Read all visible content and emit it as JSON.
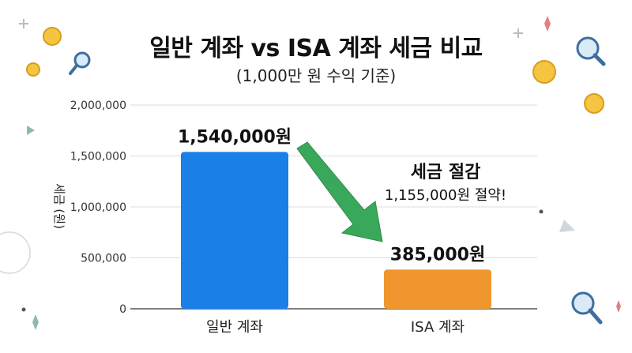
{
  "title": "일반 계좌 vs ISA 계좌 세금 비교",
  "subtitle": "(1,000만 원 수익 기준)",
  "annotation": {
    "headline": "세금 절감",
    "detail": "1,155,000원 절약!",
    "arrow_color": "#3aa85a"
  },
  "chart_data": {
    "type": "bar",
    "categories": [
      "일반 계좌",
      "ISA 계좌"
    ],
    "values": [
      1540000,
      385000
    ],
    "data_labels": [
      "1,540,000원",
      "385,000원"
    ],
    "bar_colors": [
      "#1a7fe6",
      "#f0962e"
    ],
    "title": "일반 계좌 vs ISA 계좌 세금 비교",
    "subtitle": "(1,000만 원 수익 기준)",
    "xlabel": "",
    "ylabel": "세금 (원)",
    "ylim": [
      0,
      2000000
    ],
    "yticks": [
      0,
      500000,
      1000000,
      1500000,
      2000000
    ],
    "ytick_labels": [
      "0",
      "500,000",
      "1,000,000",
      "1,500,000",
      "2,000,000"
    ],
    "grid": true,
    "legend": "none"
  }
}
